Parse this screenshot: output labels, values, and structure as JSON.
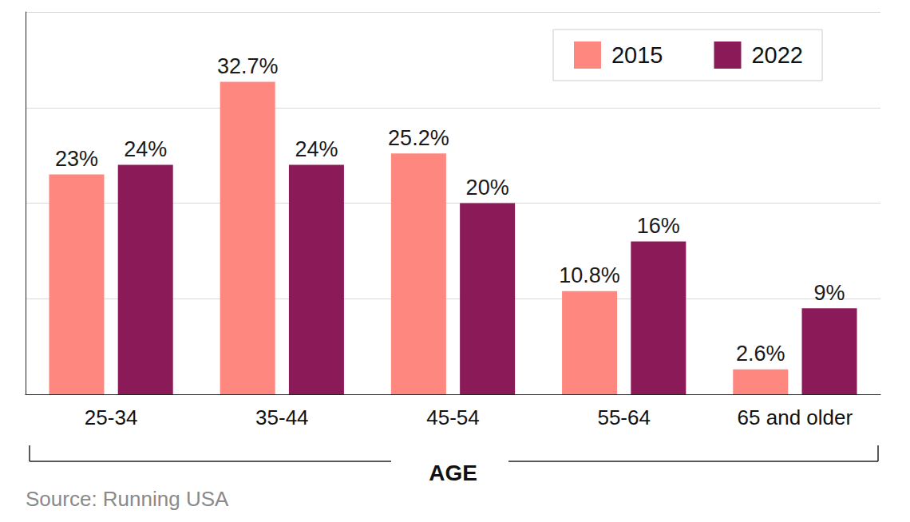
{
  "chart_data": {
    "type": "bar",
    "xlabel": "AGE",
    "source": "Source: Running USA",
    "categories": [
      "25-34",
      "35-44",
      "45-54",
      "55-64",
      "65 and older"
    ],
    "series": [
      {
        "name": "2015",
        "color": "#fe8880",
        "values": [
          23,
          32.7,
          25.2,
          10.8,
          2.6
        ],
        "value_labels": [
          "23%",
          "32.7%",
          "25.2%",
          "10.8%",
          "2.6%"
        ]
      },
      {
        "name": "2022",
        "color": "#8b1a59",
        "values": [
          24,
          24,
          20,
          16,
          9
        ],
        "value_labels": [
          "24%",
          "24%",
          "20%",
          "16%",
          "9%"
        ]
      }
    ],
    "ylim": [
      0,
      40
    ],
    "yticks": [
      0,
      10,
      20,
      30,
      40
    ],
    "grid": true,
    "legend": "upper right",
    "data_labels": true,
    "tick_labels": "x"
  }
}
